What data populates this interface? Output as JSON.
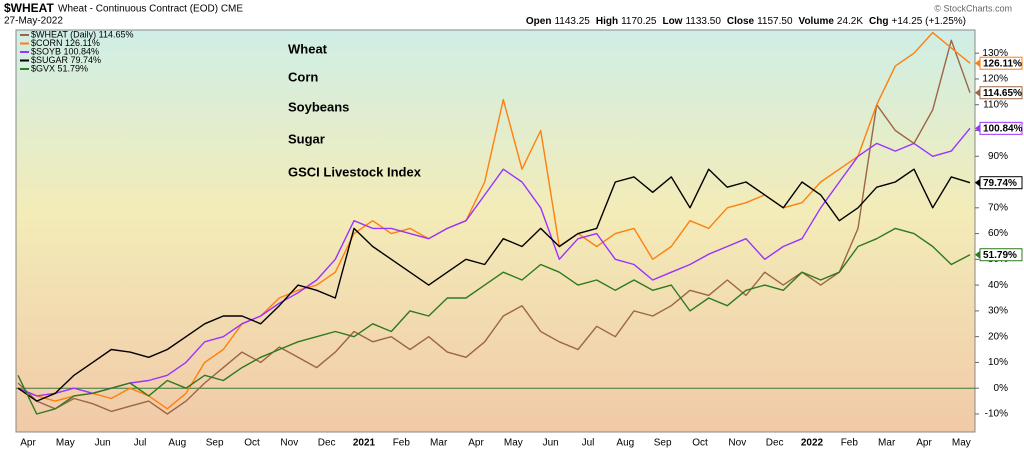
{
  "chart_data": {
    "type": "line",
    "title": "$WHEAT",
    "subtitle": "Wheat - Continuous Contract (EOD) CME",
    "date": "27-May-2022",
    "credit": "© StockCharts.com",
    "quote": [
      {
        "label": "Open",
        "value": 1143.25
      },
      {
        "label": "High",
        "value": 1170.25
      },
      {
        "label": "Low",
        "value": 1133.5,
        "text": "1133.50"
      },
      {
        "label": "Close",
        "value": 1157.5,
        "text": "1157.50"
      },
      {
        "label": "Volume",
        "text": "24.2K"
      },
      {
        "label": "Chg",
        "text": "+14.25 (+1.25%)"
      }
    ],
    "annotations": [
      {
        "text": "Wheat",
        "color": "#8c6d1f"
      },
      {
        "text": "Corn",
        "color": "#ff8c1a"
      },
      {
        "text": "Soybeans",
        "color": "#9933ff"
      },
      {
        "text": "Sugar",
        "color": "#000000"
      },
      {
        "text": "GSCI Livestock Index",
        "color": "#2e6b1e"
      }
    ],
    "x": [
      "Apr",
      null,
      "May",
      null,
      "Jun",
      null,
      "Jul",
      null,
      "Aug",
      null,
      "Sep",
      null,
      "Oct",
      null,
      "Nov",
      null,
      "Dec",
      null,
      "2021",
      null,
      "Feb",
      null,
      "Mar",
      null,
      "Apr",
      null,
      "May",
      null,
      "Jun",
      null,
      "Jul",
      null,
      "Aug",
      null,
      "Sep",
      null,
      "Oct",
      null,
      "Nov",
      null,
      "Dec",
      null,
      "2022",
      null,
      "Feb",
      null,
      "Mar",
      null,
      "Apr",
      null,
      "May",
      null
    ],
    "ylim": [
      -17,
      139
    ],
    "yticks": [
      {
        "value": -10,
        "label": "-10%"
      },
      {
        "value": 0,
        "label": "0%"
      },
      {
        "value": 10,
        "label": "10%"
      },
      {
        "value": 20,
        "label": "20%"
      },
      {
        "value": 30,
        "label": "30%"
      },
      {
        "value": 40,
        "label": "40%"
      },
      {
        "value": 50,
        "label": "50%"
      },
      {
        "value": 60,
        "label": "60%"
      },
      {
        "value": 70,
        "label": "70%"
      },
      {
        "value": 80,
        "label": "80%"
      },
      {
        "value": 90,
        "label": "90%"
      },
      {
        "value": 100,
        "label": "100%"
      },
      {
        "value": 110,
        "label": "110%"
      },
      {
        "value": 120,
        "label": "120%"
      },
      {
        "value": 130,
        "label": "130%"
      }
    ],
    "grid": false,
    "hline": 0,
    "hline_color": "#3a7a3a",
    "series": [
      {
        "name": "$WHEAT (Daily) 114.65%",
        "color": "#9c6644",
        "values": [
          2,
          -5,
          -8,
          -4,
          -6,
          -9,
          -7,
          -5,
          -10,
          -5,
          2,
          8,
          14,
          10,
          16,
          12,
          8,
          14,
          22,
          18,
          20,
          15,
          20,
          14,
          12,
          18,
          28,
          32,
          22,
          18,
          15,
          24,
          20,
          30,
          28,
          32,
          38,
          36,
          42,
          36,
          45,
          40,
          45,
          40,
          45,
          62,
          110,
          100,
          95,
          108,
          135,
          114.65
        ],
        "value_labels": {
          "51": "114.65%"
        }
      },
      {
        "name": "$CORN 126.11%",
        "color": "#ff7f0e",
        "values": [
          0,
          -3,
          -5,
          -3,
          -2,
          -4,
          0,
          -3,
          -8,
          -2,
          10,
          15,
          25,
          28,
          35,
          38,
          40,
          45,
          60,
          65,
          60,
          62,
          58,
          62,
          65,
          80,
          112,
          85,
          100,
          55,
          60,
          55,
          60,
          62,
          50,
          55,
          65,
          62,
          70,
          72,
          75,
          70,
          72,
          80,
          85,
          90,
          110,
          125,
          130,
          138,
          132,
          126.11
        ],
        "value_labels": {
          "51": "126.11%"
        }
      },
      {
        "name": "$SOYB 100.84%",
        "color": "#9933ff",
        "values": [
          0,
          -3,
          -2,
          0,
          -2,
          0,
          2,
          3,
          5,
          10,
          18,
          20,
          25,
          28,
          33,
          37,
          42,
          50,
          65,
          62,
          62,
          60,
          58,
          62,
          65,
          75,
          85,
          80,
          70,
          50,
          58,
          60,
          50,
          48,
          42,
          45,
          48,
          52,
          55,
          58,
          50,
          55,
          58,
          70,
          80,
          90,
          95,
          92,
          95,
          90,
          92,
          100.84
        ],
        "value_labels": {
          "51": "100.84%"
        }
      },
      {
        "name": "$SUGAR 79.74%",
        "color": "#000000",
        "values": [
          0,
          -5,
          -2,
          5,
          10,
          15,
          14,
          12,
          15,
          20,
          25,
          28,
          28,
          25,
          32,
          40,
          38,
          35,
          62,
          55,
          50,
          45,
          40,
          45,
          50,
          48,
          58,
          55,
          62,
          55,
          60,
          62,
          80,
          82,
          76,
          82,
          70,
          85,
          78,
          80,
          75,
          70,
          80,
          75,
          65,
          70,
          78,
          80,
          85,
          70,
          82,
          79.74
        ],
        "value_labels": {
          "51": "79.74%"
        }
      },
      {
        "name": "$GVX 51.79%",
        "color": "#2d7a1f",
        "values": [
          5,
          -10,
          -8,
          -3,
          -2,
          0,
          2,
          -3,
          3,
          0,
          5,
          3,
          8,
          12,
          15,
          18,
          20,
          22,
          20,
          25,
          22,
          30,
          28,
          35,
          35,
          40,
          45,
          42,
          48,
          45,
          40,
          42,
          38,
          42,
          38,
          40,
          30,
          35,
          32,
          38,
          40,
          38,
          45,
          42,
          45,
          55,
          58,
          62,
          60,
          55,
          48,
          51.79
        ],
        "value_labels": {
          "51": "51.79%"
        }
      }
    ]
  }
}
